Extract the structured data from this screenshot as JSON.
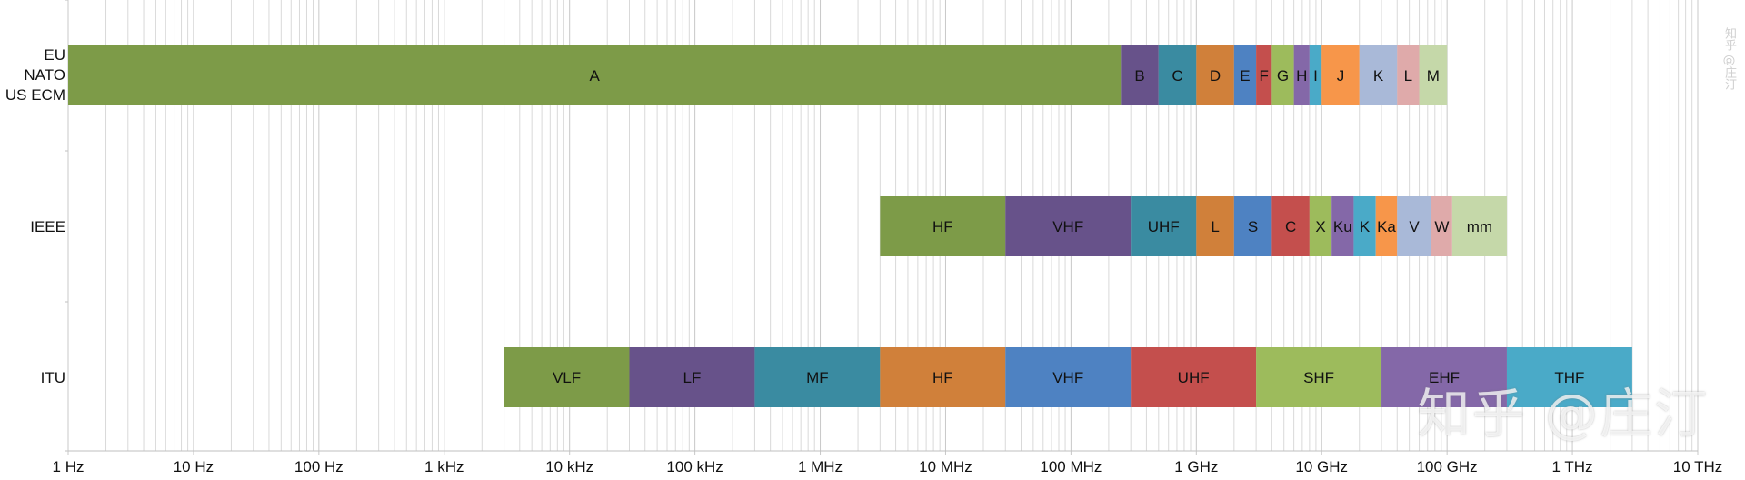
{
  "chart_data": {
    "type": "bar",
    "orientation": "horizontal",
    "title": "",
    "xlabel": "",
    "ylabel": "",
    "x_scale": "log10",
    "x_range_hz": [
      1,
      10000000000000
    ],
    "grid": "vertical minor and major",
    "x_ticks": [
      {
        "value": 1,
        "label": "1 Hz"
      },
      {
        "value": 10,
        "label": "10 Hz"
      },
      {
        "value": 100,
        "label": "100 Hz"
      },
      {
        "value": 1000,
        "label": "1 kHz"
      },
      {
        "value": 10000,
        "label": "10 kHz"
      },
      {
        "value": 100000,
        "label": "100 kHz"
      },
      {
        "value": 1000000,
        "label": "1 MHz"
      },
      {
        "value": 10000000,
        "label": "10 MHz"
      },
      {
        "value": 100000000,
        "label": "100 MHz"
      },
      {
        "value": 1000000000,
        "label": "1 GHz"
      },
      {
        "value": 10000000000,
        "label": "10 GHz"
      },
      {
        "value": 100000000000,
        "label": "100 GHz"
      },
      {
        "value": 1000000000000,
        "label": "1 THz"
      },
      {
        "value": 10000000000000,
        "label": "10 THz"
      }
    ],
    "categories": [
      {
        "label": "EU\nNATO\nUS ECM",
        "bands": [
          {
            "name": "A",
            "start": 0,
            "end": 250000000,
            "color": "#7d9b48"
          },
          {
            "name": "B",
            "start": 250000000,
            "end": 500000000,
            "color": "#67528a"
          },
          {
            "name": "C",
            "start": 500000000,
            "end": 1000000000,
            "color": "#3a8ba1"
          },
          {
            "name": "D",
            "start": 1000000000,
            "end": 2000000000,
            "color": "#d0803a"
          },
          {
            "name": "E",
            "start": 2000000000,
            "end": 3000000000,
            "color": "#4e82c2"
          },
          {
            "name": "F",
            "start": 3000000000,
            "end": 4000000000,
            "color": "#c44f4d"
          },
          {
            "name": "G",
            "start": 4000000000,
            "end": 6000000000,
            "color": "#9dbb5c"
          },
          {
            "name": "H",
            "start": 6000000000,
            "end": 8000000000,
            "color": "#8468a8"
          },
          {
            "name": "I",
            "start": 8000000000,
            "end": 10000000000,
            "color": "#4aaac8"
          },
          {
            "name": "J",
            "start": 10000000000,
            "end": 20000000000,
            "color": "#f7964a"
          },
          {
            "name": "K",
            "start": 20000000000,
            "end": 40000000000,
            "color": "#a9b9d8"
          },
          {
            "name": "L",
            "start": 40000000000,
            "end": 60000000000,
            "color": "#dfaaaa"
          },
          {
            "name": "M",
            "start": 60000000000,
            "end": 100000000000,
            "color": "#c5d8a9"
          }
        ]
      },
      {
        "label": "IEEE",
        "bands": [
          {
            "name": "HF",
            "start": 3000000,
            "end": 30000000,
            "color": "#7d9b48"
          },
          {
            "name": "VHF",
            "start": 30000000,
            "end": 300000000,
            "color": "#67528a"
          },
          {
            "name": "UHF",
            "start": 300000000,
            "end": 1000000000,
            "color": "#3a8ba1"
          },
          {
            "name": "L",
            "start": 1000000000,
            "end": 2000000000,
            "color": "#d0803a"
          },
          {
            "name": "S",
            "start": 2000000000,
            "end": 4000000000,
            "color": "#4e82c2"
          },
          {
            "name": "C",
            "start": 4000000000,
            "end": 8000000000,
            "color": "#c44f4d"
          },
          {
            "name": "X",
            "start": 8000000000,
            "end": 12000000000,
            "color": "#9dbb5c"
          },
          {
            "name": "Ku",
            "start": 12000000000,
            "end": 18000000000,
            "color": "#8468a8"
          },
          {
            "name": "K",
            "start": 18000000000,
            "end": 27000000000,
            "color": "#4aaac8"
          },
          {
            "name": "Ka",
            "start": 27000000000,
            "end": 40000000000,
            "color": "#f7964a"
          },
          {
            "name": "V",
            "start": 40000000000,
            "end": 75000000000,
            "color": "#a9b9d8"
          },
          {
            "name": "W",
            "start": 75000000000,
            "end": 110000000000,
            "color": "#dfaaaa"
          },
          {
            "name": "mm",
            "start": 110000000000,
            "end": 300000000000,
            "color": "#c5d8a9"
          }
        ]
      },
      {
        "label": "ITU",
        "bands": [
          {
            "name": "VLF",
            "start": 3000,
            "end": 30000,
            "color": "#7d9b48"
          },
          {
            "name": "LF",
            "start": 30000,
            "end": 300000,
            "color": "#67528a"
          },
          {
            "name": "MF",
            "start": 300000,
            "end": 3000000,
            "color": "#3a8ba1"
          },
          {
            "name": "HF",
            "start": 3000000,
            "end": 30000000,
            "color": "#d0803a"
          },
          {
            "name": "VHF",
            "start": 30000000,
            "end": 300000000,
            "color": "#4e82c2"
          },
          {
            "name": "UHF",
            "start": 300000000,
            "end": 3000000000,
            "color": "#c44f4d"
          },
          {
            "name": "SHF",
            "start": 3000000000,
            "end": 30000000000,
            "color": "#9dbb5c"
          },
          {
            "name": "EHF",
            "start": 30000000000,
            "end": 300000000000,
            "color": "#8468a8"
          },
          {
            "name": "THF",
            "start": 300000000000,
            "end": 3000000000000,
            "color": "#4aaac8"
          }
        ]
      }
    ]
  },
  "watermark": "知乎 @庄汀",
  "side_mark": "知乎 @庄汀"
}
